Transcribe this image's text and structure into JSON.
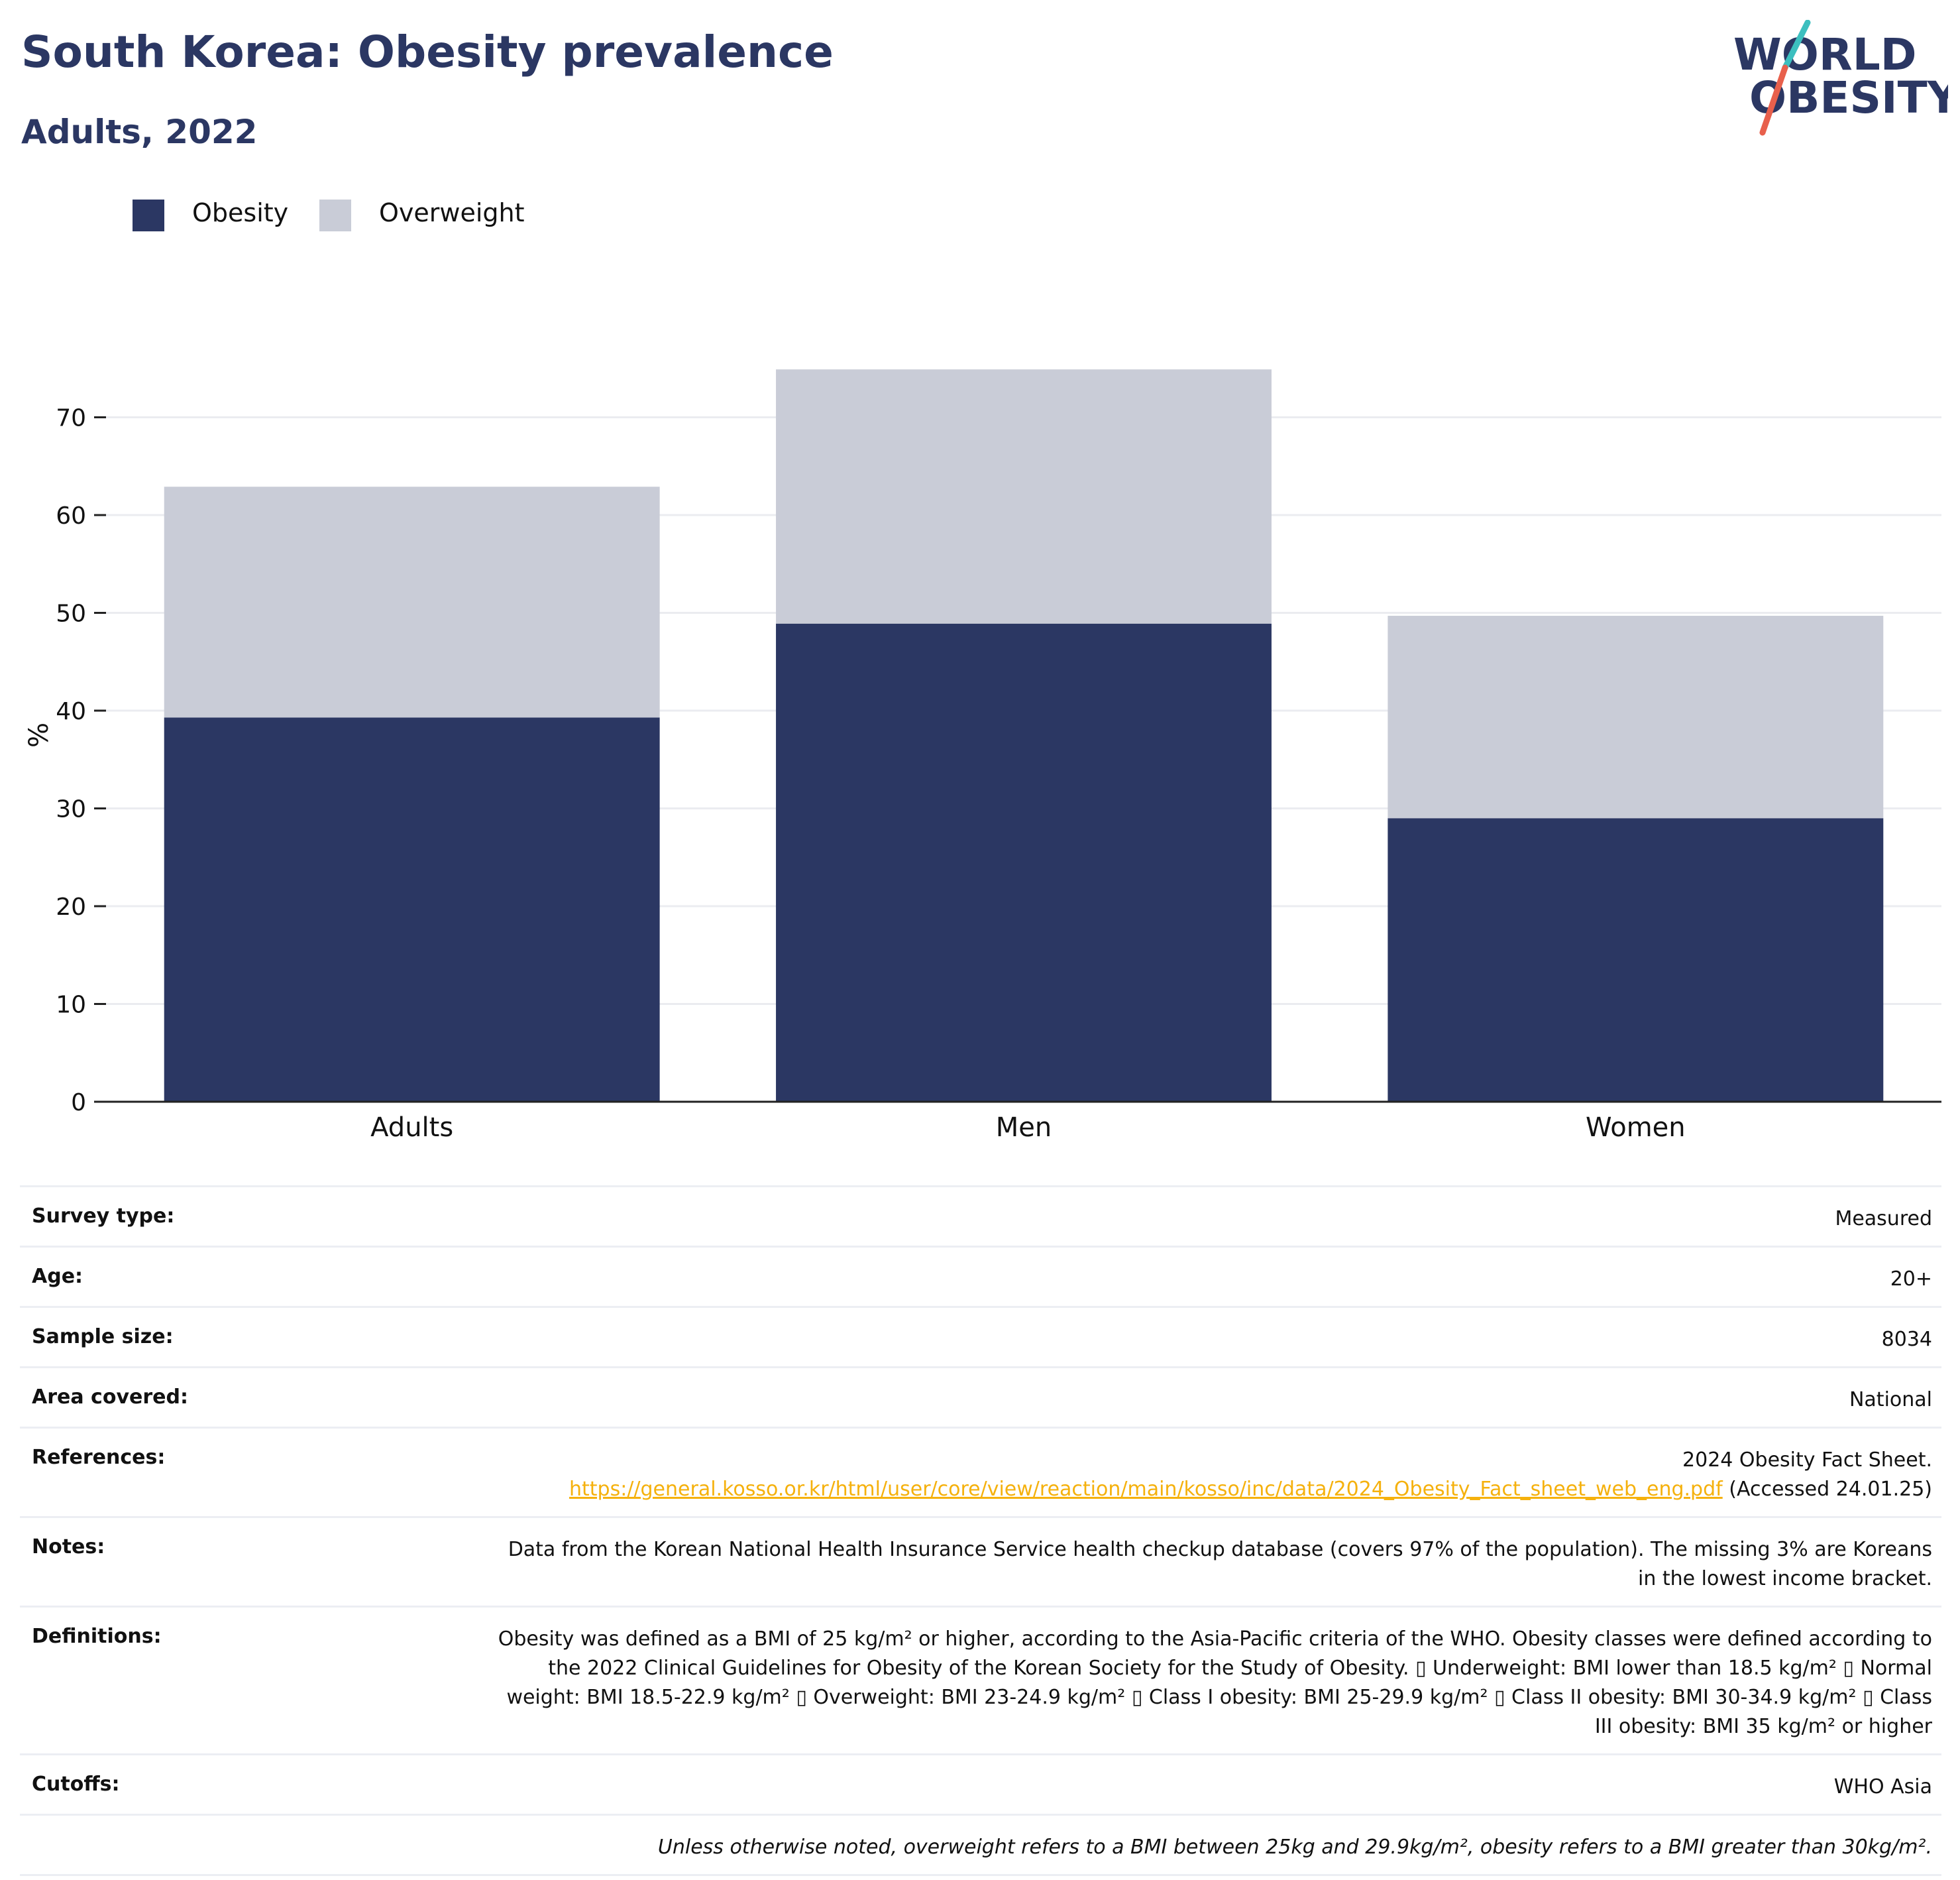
{
  "header": {
    "title": "South Korea: Obesity prevalence",
    "subtitle": "Adults, 2022"
  },
  "logo": {
    "line1": "WORLD",
    "line2": "OBESITY",
    "accent_colors": [
      "#3cbfbf",
      "#e8604c"
    ],
    "text_color": "#2b3763"
  },
  "colors": {
    "obesity": "#2b3763",
    "overweight": "#c9ccd7",
    "axis": "#222222",
    "grid": "#ebecf0",
    "link": "#f5b10d"
  },
  "chart_data": {
    "type": "bar",
    "stacked": true,
    "categories": [
      "Adults",
      "Men",
      "Women"
    ],
    "series": [
      {
        "name": "Obesity",
        "values": [
          39.3,
          48.9,
          29.0
        ]
      },
      {
        "name": "Overweight",
        "values": [
          23.6,
          26.0,
          20.7
        ]
      }
    ],
    "ylabel": "%",
    "xlabel": "",
    "ylim": [
      0,
      75
    ],
    "yticks": [
      "0",
      "10",
      "20",
      "30",
      "40",
      "50",
      "60",
      "70"
    ],
    "grid": true,
    "legend_position": "top-left"
  },
  "info": {
    "survey_type": {
      "label": "Survey type:",
      "value": "Measured"
    },
    "age": {
      "label": "Age:",
      "value": "20+"
    },
    "sample_size": {
      "label": "Sample size:",
      "value": "8034"
    },
    "area": {
      "label": "Area covered:",
      "value": "National"
    },
    "references": {
      "label": "References:",
      "text": "2024 Obesity Fact Sheet.",
      "link": "https://general.kosso.or.kr/html/user/core/view/reaction/main/kosso/inc/data/2024_Obesity_Fact_sheet_web_eng.pdf",
      "after": "(Accessed 24.01.25)"
    },
    "notes": {
      "label": "Notes:",
      "value": "Data from the Korean National Health Insurance Service health checkup database (covers 97% of the population). The missing 3% are Koreans in the lowest income bracket."
    },
    "definitions": {
      "label": "Definitions:",
      "value": "Obesity was defined as a BMI of 25 kg/m² or higher, according to the Asia-Pacific criteria of the WHO. Obesity classes were defined according to the 2022 Clinical Guidelines for Obesity of the Korean Society for the Study of Obesity. ▯ Underweight: BMI lower than 18.5 kg/m² ▯ Normal weight: BMI 18.5-22.9 kg/m² ▯ Overweight: BMI 23-24.9 kg/m² ▯ Class I obesity: BMI 25-29.9 kg/m² ▯ Class II obesity: BMI 30-34.9 kg/m² ▯ Class III obesity: BMI 35 kg/m² or higher"
    },
    "cutoffs": {
      "label": "Cutoffs:",
      "value": "WHO Asia"
    },
    "footnote": "Unless otherwise noted, overweight refers to a BMI between 25kg and 29.9kg/m², obesity refers to a BMI greater than 30kg/m²."
  }
}
